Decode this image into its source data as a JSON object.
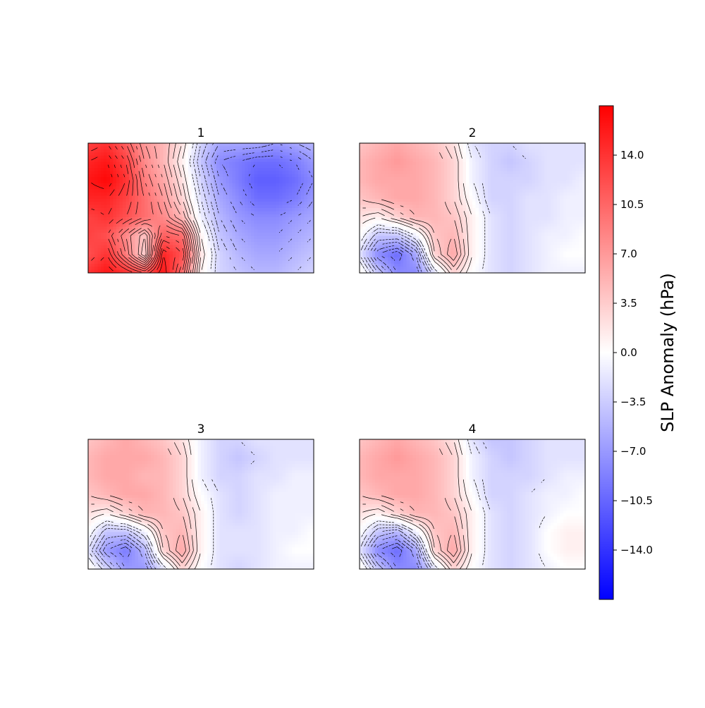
{
  "chart_data": {
    "type": "heatmap",
    "colorbar": {
      "label": "SLP Anomaly (hPa)",
      "range": [
        -17.5,
        17.5
      ],
      "ticks": [
        -14.0,
        -10.5,
        -7.0,
        -3.5,
        0.0,
        3.5,
        7.0,
        10.5,
        14.0
      ],
      "tick_labels": [
        "−14.0",
        "−10.5",
        "−7.0",
        "−3.5",
        "0.0",
        "3.5",
        "7.0",
        "10.5",
        "14.0"
      ],
      "colors": {
        "low": "#0000ff",
        "mid": "#ffffff",
        "high": "#ff0000"
      }
    },
    "contours": {
      "positive": "solid",
      "negative": "dashed",
      "color": "#000000"
    },
    "panels": [
      {
        "title": "1",
        "grid": [
          [
            13,
            14,
            11,
            7,
            5,
            2,
            -3,
            -6,
            -6,
            -6,
            -7,
            -6,
            -5
          ],
          [
            15,
            16,
            13,
            8,
            5,
            1,
            -4,
            -8,
            -9,
            -10,
            -10,
            -9,
            -7
          ],
          [
            16,
            17,
            14,
            9,
            6,
            2,
            -3,
            -7,
            -9,
            -11,
            -11,
            -10,
            -8
          ],
          [
            15,
            15,
            13,
            10,
            7,
            3,
            -2,
            -6,
            -8,
            -10,
            -10,
            -9,
            -7
          ],
          [
            13,
            14,
            12,
            10,
            8,
            5,
            -1,
            -5,
            -7,
            -8,
            -8,
            -7,
            -6
          ],
          [
            13,
            12,
            8,
            4,
            11,
            10,
            1,
            -4,
            -6,
            -7,
            -7,
            -6,
            -5
          ],
          [
            12,
            14,
            9,
            3,
            15,
            12,
            2,
            -3,
            -5,
            -6,
            -6,
            -5,
            -4
          ],
          [
            14,
            16,
            14,
            12,
            16,
            10,
            1,
            -3,
            -4,
            -5,
            -5,
            -4,
            -3
          ]
        ]
      },
      {
        "title": "2",
        "grid": [
          [
            4,
            5,
            6,
            5,
            4,
            2,
            -2,
            -3,
            -3,
            -2,
            -2,
            -2,
            -2
          ],
          [
            5,
            6,
            7,
            6,
            5,
            3,
            -1,
            -3,
            -4,
            -3,
            -2,
            -2,
            -2
          ],
          [
            5,
            6,
            6,
            6,
            5,
            3,
            -1,
            -3,
            -3,
            -3,
            -2,
            -2,
            -1
          ],
          [
            4,
            5,
            6,
            6,
            5,
            3,
            0,
            -3,
            -3,
            -2,
            -2,
            -1,
            -1
          ],
          [
            2,
            1,
            3,
            5,
            5,
            4,
            1,
            -2,
            -3,
            -2,
            -2,
            -1,
            -1
          ],
          [
            0,
            -4,
            -4,
            -1,
            4,
            5,
            1,
            -2,
            -3,
            -2,
            -1,
            -1,
            0
          ],
          [
            -2,
            -8,
            -10,
            -6,
            3,
            6,
            1,
            -2,
            -3,
            -2,
            -1,
            0,
            0
          ],
          [
            1,
            -4,
            -8,
            -8,
            -2,
            3,
            0,
            -2,
            -3,
            -2,
            -1,
            -1,
            -1
          ]
        ]
      },
      {
        "title": "3",
        "grid": [
          [
            4,
            5,
            6,
            5,
            4,
            2,
            -1,
            -3,
            -3,
            -2,
            -2,
            -2,
            -2
          ],
          [
            5,
            6,
            6,
            6,
            5,
            3,
            -1,
            -3,
            -4,
            -3,
            -2,
            -2,
            -2
          ],
          [
            5,
            6,
            6,
            5,
            5,
            3,
            -1,
            -3,
            -3,
            -2,
            -2,
            -1,
            -1
          ],
          [
            4,
            5,
            6,
            6,
            5,
            3,
            0,
            -2,
            -3,
            -2,
            -1,
            -1,
            -1
          ],
          [
            2,
            1,
            3,
            5,
            5,
            4,
            1,
            -2,
            -3,
            -2,
            -1,
            -1,
            -1
          ],
          [
            0,
            -4,
            -4,
            -1,
            4,
            5,
            1,
            -2,
            -2,
            -2,
            -1,
            -1,
            0
          ],
          [
            -2,
            -7,
            -9,
            -5,
            3,
            6,
            1,
            -2,
            -2,
            -2,
            -1,
            0,
            0
          ],
          [
            1,
            -3,
            -7,
            -7,
            -2,
            3,
            0,
            -2,
            -3,
            -2,
            -1,
            -1,
            -1
          ]
        ]
      },
      {
        "title": "4",
        "grid": [
          [
            4,
            5,
            6,
            5,
            4,
            2,
            -2,
            -4,
            -4,
            -3,
            -2,
            -2,
            -2
          ],
          [
            5,
            6,
            7,
            6,
            5,
            3,
            -1,
            -3,
            -4,
            -3,
            -2,
            -2,
            -2
          ],
          [
            5,
            6,
            6,
            6,
            5,
            3,
            -1,
            -3,
            -3,
            -3,
            -2,
            -1,
            -1
          ],
          [
            4,
            5,
            6,
            6,
            5,
            3,
            0,
            -3,
            -3,
            -2,
            -1,
            -1,
            0
          ],
          [
            2,
            1,
            3,
            5,
            5,
            4,
            1,
            -2,
            -3,
            -2,
            -1,
            0,
            0
          ],
          [
            0,
            -4,
            -5,
            -1,
            4,
            5,
            1,
            -2,
            -3,
            -2,
            0,
            1,
            1
          ],
          [
            -2,
            -8,
            -10,
            -6,
            3,
            6,
            1,
            -2,
            -3,
            -2,
            0,
            1,
            1
          ],
          [
            1,
            -4,
            -8,
            -8,
            -2,
            3,
            0,
            -2,
            -3,
            -2,
            -1,
            0,
            0
          ]
        ]
      }
    ]
  }
}
